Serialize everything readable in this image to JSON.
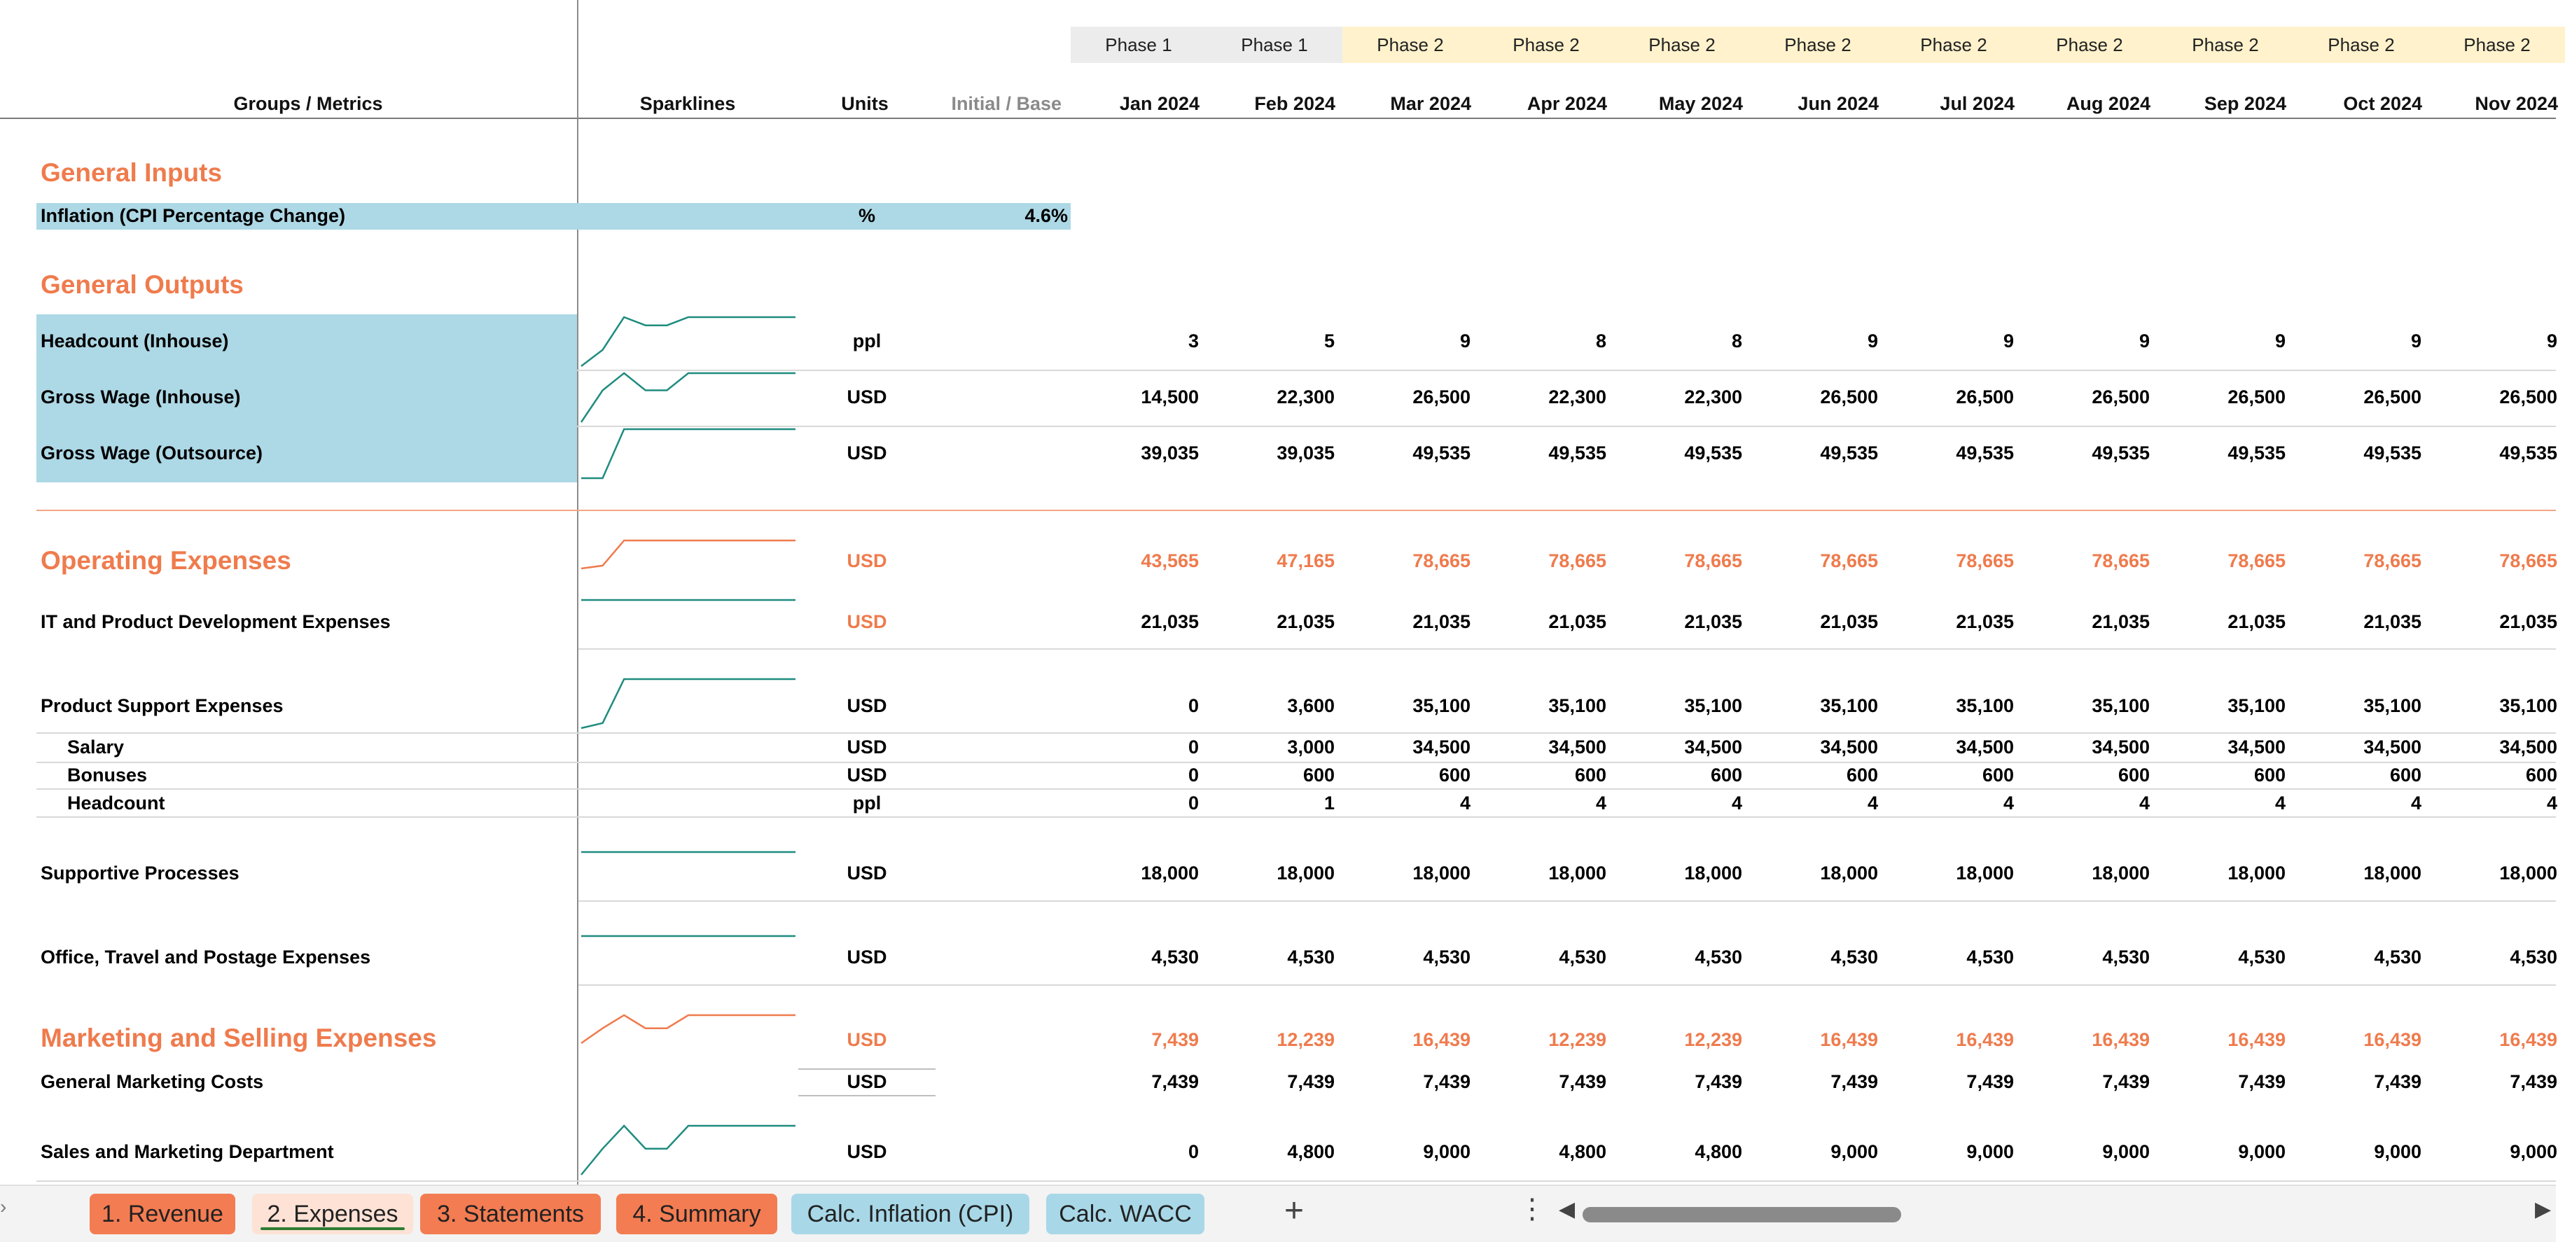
{
  "header": {
    "groups_metrics": "Groups / Metrics",
    "sparklines": "Sparklines",
    "units": "Units",
    "initial_base": "Initial / Base",
    "phases": [
      "Phase 1",
      "Phase 1",
      "Phase 2",
      "Phase 2",
      "Phase 2",
      "Phase 2",
      "Phase 2",
      "Phase 2",
      "Phase 2",
      "Phase 2",
      "Phase 2"
    ],
    "months": [
      "Jan 2024",
      "Feb 2024",
      "Mar 2024",
      "Apr 2024",
      "May 2024",
      "Jun 2024",
      "Jul 2024",
      "Aug 2024",
      "Sep 2024",
      "Oct 2024",
      "Nov 2024"
    ]
  },
  "colors": {
    "accent_orange": "#ef7b4d",
    "input_blue": "#add8e6",
    "phase1_bg": "#ececec",
    "phase2_bg": "#fff2cc",
    "sparkline_teal": "#1f8c7f"
  },
  "sections": {
    "general_inputs": "General Inputs",
    "general_outputs": "General Outputs"
  },
  "inflation": {
    "label": "Inflation (CPI Percentage Change)",
    "unit": "%",
    "base": "4.6%"
  },
  "rows": [
    {
      "label": "Headcount (Inhouse)",
      "unit": "ppl",
      "values": [
        "3",
        "5",
        "9",
        "8",
        "8",
        "9",
        "9",
        "9",
        "9",
        "9",
        "9"
      ],
      "spark": [
        3,
        5,
        9,
        8,
        8,
        9,
        9,
        9,
        9,
        9,
        9
      ]
    },
    {
      "label": "Gross Wage (Inhouse)",
      "unit": "USD",
      "values": [
        "14,500",
        "22,300",
        "26,500",
        "22,300",
        "22,300",
        "26,500",
        "26,500",
        "26,500",
        "26,500",
        "26,500",
        "26,500"
      ],
      "spark": [
        14500,
        22300,
        26500,
        22300,
        22300,
        26500,
        26500,
        26500,
        26500,
        26500,
        26500
      ]
    },
    {
      "label": "Gross Wage (Outsource)",
      "unit": "USD",
      "values": [
        "39,035",
        "39,035",
        "49,535",
        "49,535",
        "49,535",
        "49,535",
        "49,535",
        "49,535",
        "49,535",
        "49,535",
        "49,535"
      ],
      "spark": [
        39035,
        39035,
        49535,
        49535,
        49535,
        49535,
        49535,
        49535,
        49535,
        49535,
        49535
      ]
    },
    {
      "label": "Operating Expenses",
      "unit": "USD",
      "values": [
        "43,565",
        "47,165",
        "78,665",
        "78,665",
        "78,665",
        "78,665",
        "78,665",
        "78,665",
        "78,665",
        "78,665",
        "78,665"
      ],
      "spark": [
        43565,
        47165,
        78665,
        78665,
        78665,
        78665,
        78665,
        78665,
        78665,
        78665,
        78665
      ]
    },
    {
      "label": "IT and Product Development Expenses",
      "unit": "USD",
      "values": [
        "21,035",
        "21,035",
        "21,035",
        "21,035",
        "21,035",
        "21,035",
        "21,035",
        "21,035",
        "21,035",
        "21,035",
        "21,035"
      ],
      "spark": [
        21035,
        21035,
        21035,
        21035,
        21035,
        21035,
        21035,
        21035,
        21035,
        21035,
        21035
      ]
    },
    {
      "label": "Product Support Expenses",
      "unit": "USD",
      "values": [
        "0",
        "3,600",
        "35,100",
        "35,100",
        "35,100",
        "35,100",
        "35,100",
        "35,100",
        "35,100",
        "35,100",
        "35,100"
      ],
      "spark": [
        0,
        3600,
        35100,
        35100,
        35100,
        35100,
        35100,
        35100,
        35100,
        35100,
        35100
      ]
    },
    {
      "label": "Salary",
      "unit": "USD",
      "values": [
        "0",
        "3,000",
        "34,500",
        "34,500",
        "34,500",
        "34,500",
        "34,500",
        "34,500",
        "34,500",
        "34,500",
        "34,500"
      ]
    },
    {
      "label": "Bonuses",
      "unit": "USD",
      "values": [
        "0",
        "600",
        "600",
        "600",
        "600",
        "600",
        "600",
        "600",
        "600",
        "600",
        "600"
      ]
    },
    {
      "label": "Headcount",
      "unit": "ppl",
      "values": [
        "0",
        "1",
        "4",
        "4",
        "4",
        "4",
        "4",
        "4",
        "4",
        "4",
        "4"
      ]
    },
    {
      "label": "Supportive Processes",
      "unit": "USD",
      "values": [
        "18,000",
        "18,000",
        "18,000",
        "18,000",
        "18,000",
        "18,000",
        "18,000",
        "18,000",
        "18,000",
        "18,000",
        "18,000"
      ],
      "spark": [
        18000,
        18000,
        18000,
        18000,
        18000,
        18000,
        18000,
        18000,
        18000,
        18000,
        18000
      ]
    },
    {
      "label": "Office, Travel and Postage Expenses",
      "unit": "USD",
      "values": [
        "4,530",
        "4,530",
        "4,530",
        "4,530",
        "4,530",
        "4,530",
        "4,530",
        "4,530",
        "4,530",
        "4,530",
        "4,530"
      ],
      "spark": [
        4530,
        4530,
        4530,
        4530,
        4530,
        4530,
        4530,
        4530,
        4530,
        4530,
        4530
      ]
    },
    {
      "label": "Marketing and Selling Expenses",
      "unit": "USD",
      "values": [
        "7,439",
        "12,239",
        "16,439",
        "12,239",
        "12,239",
        "16,439",
        "16,439",
        "16,439",
        "16,439",
        "16,439",
        "16,439"
      ],
      "spark": [
        7439,
        12239,
        16439,
        12239,
        12239,
        16439,
        16439,
        16439,
        16439,
        16439,
        16439
      ]
    },
    {
      "label": "General Marketing Costs",
      "unit": "USD",
      "values": [
        "7,439",
        "7,439",
        "7,439",
        "7,439",
        "7,439",
        "7,439",
        "7,439",
        "7,439",
        "7,439",
        "7,439",
        "7,439"
      ]
    },
    {
      "label": "Sales and Marketing Department",
      "unit": "USD",
      "values": [
        "0",
        "4,800",
        "9,000",
        "4,800",
        "4,800",
        "9,000",
        "9,000",
        "9,000",
        "9,000",
        "9,000",
        "9,000"
      ],
      "spark": [
        0,
        4800,
        9000,
        4800,
        4800,
        9000,
        9000,
        9000,
        9000,
        9000,
        9000
      ]
    }
  ],
  "tabs": [
    {
      "label": "1. Revenue",
      "style": "orange",
      "active": false
    },
    {
      "label": "2. Expenses",
      "style": "orange",
      "active": true
    },
    {
      "label": "3. Statements",
      "style": "orange",
      "active": false
    },
    {
      "label": "4. Summary",
      "style": "orange",
      "active": false
    },
    {
      "label": "Calc. Inflation (CPI)",
      "style": "blue",
      "active": false
    },
    {
      "label": "Calc. WACC",
      "style": "blue",
      "active": false
    }
  ],
  "tabbar_icons": {
    "add": "plus-icon",
    "more": "more-vert-icon",
    "scroll_left": "scroll-left-icon",
    "scroll_right": "scroll-right-icon"
  }
}
